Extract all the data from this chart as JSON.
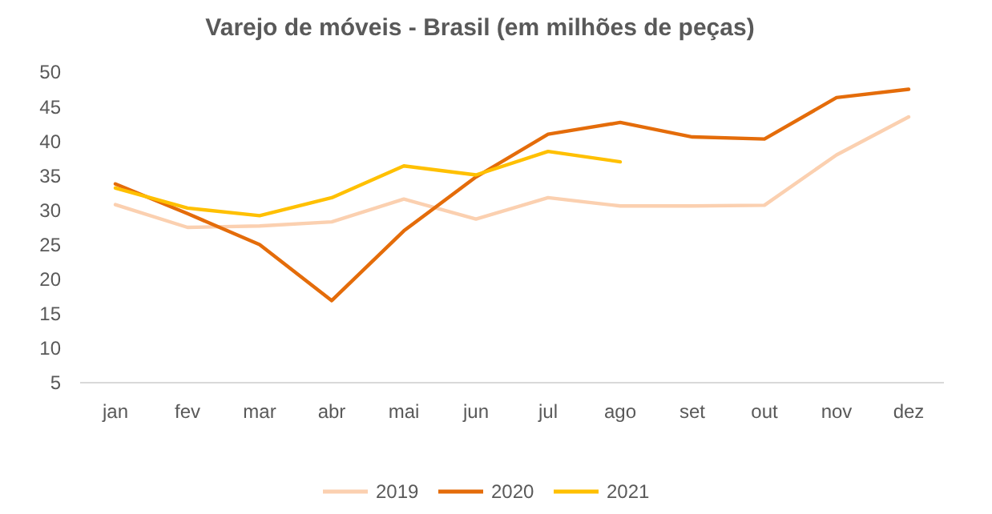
{
  "chart_data": {
    "type": "line",
    "title": "Varejo de móveis - Brasil (em milhões de peças)",
    "categories": [
      "jan",
      "fev",
      "mar",
      "abr",
      "mai",
      "jun",
      "jul",
      "ago",
      "set",
      "out",
      "nov",
      "dez"
    ],
    "series": [
      {
        "name": "2019",
        "color": "#fbd0b0",
        "values": [
          30.8,
          27.5,
          27.7,
          28.3,
          31.6,
          28.7,
          31.8,
          30.6,
          30.6,
          30.7,
          38,
          43.5
        ]
      },
      {
        "name": "2020",
        "color": "#e46c0a",
        "values": [
          33.8,
          29.5,
          25,
          16.9,
          27,
          34.8,
          41,
          42.7,
          40.6,
          40.3,
          46.3,
          47.5
        ]
      },
      {
        "name": "2021",
        "color": "#ffc000",
        "values": [
          33.2,
          30.3,
          29.2,
          31.8,
          36.4,
          35.1,
          38.5,
          37,
          null,
          null,
          null,
          null
        ]
      }
    ],
    "ylim": [
      5,
      50
    ],
    "yticks": [
      5,
      10,
      15,
      20,
      25,
      30,
      35,
      40,
      45,
      50
    ],
    "legend": "bottom",
    "grid": false
  }
}
